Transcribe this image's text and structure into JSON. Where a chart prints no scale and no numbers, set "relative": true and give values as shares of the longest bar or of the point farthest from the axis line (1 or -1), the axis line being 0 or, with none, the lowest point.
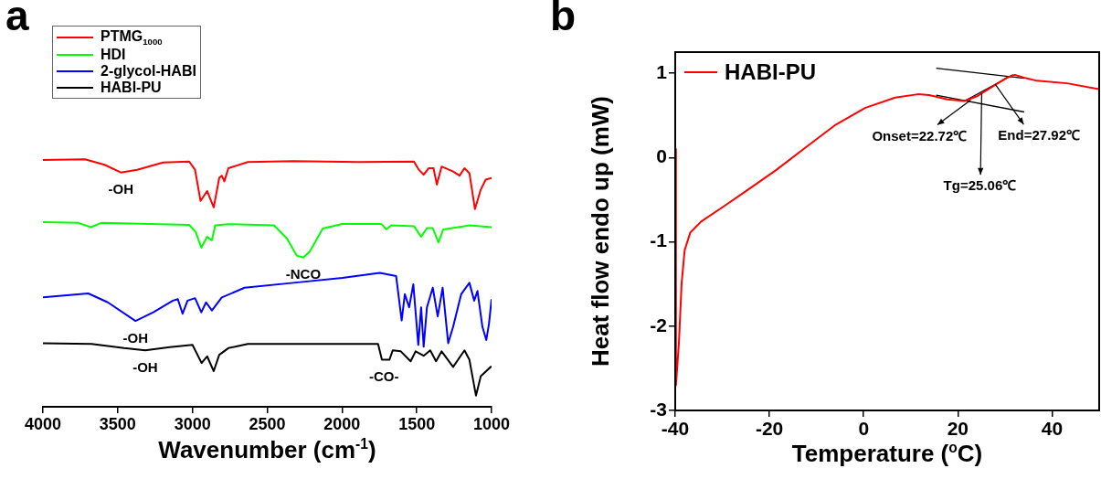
{
  "chart_data": [
    {
      "type": "line",
      "title": "a",
      "xlabel": "Wavenumber (cm$^{-1}$)",
      "relative": true,
      "tick_labels": "x",
      "xlim": [
        4000,
        1000
      ],
      "xticks": [
        4000,
        3500,
        3000,
        2500,
        2000,
        1500,
        1000
      ],
      "legend": "top left",
      "series": [
        {
          "name": "PTMG$_{1000}$",
          "color": "#ff0000",
          "x": [
            4000,
            3719,
            3588,
            3479,
            3370,
            3196,
            3022,
            2983,
            2946,
            2902,
            2858,
            2821,
            2804,
            2787,
            2760,
            2630,
            2325,
            1889,
            1519,
            1486,
            1454,
            1421,
            1388,
            1366,
            1334,
            1257,
            1214,
            1181,
            1148,
            1111,
            1072,
            1039,
            1000
          ],
          "values": [
            0.997,
            1.0,
            0.978,
            0.947,
            0.958,
            0.987,
            0.991,
            0.958,
            0.832,
            0.872,
            0.806,
            0.925,
            0.934,
            0.911,
            0.964,
            0.989,
            0.993,
            0.989,
            0.991,
            0.958,
            0.938,
            0.964,
            0.964,
            0.898,
            0.971,
            0.951,
            0.934,
            0.964,
            0.944,
            0.799,
            0.878,
            0.918,
            0.925
          ]
        },
        {
          "name": "HDI",
          "color": "#00ff00",
          "x": [
            4000,
            3763,
            3680,
            3610,
            3022,
            2978,
            2941,
            2902,
            2870,
            2848,
            2760,
            2455,
            2368,
            2303,
            2259,
            2216,
            2129,
            1998,
            1737,
            1704,
            1671,
            1519,
            1471,
            1432,
            1393,
            1355,
            1323,
            1148,
            1000
          ],
          "values": [
            0.746,
            0.743,
            0.726,
            0.743,
            0.735,
            0.706,
            0.643,
            0.687,
            0.673,
            0.733,
            0.738,
            0.733,
            0.68,
            0.611,
            0.603,
            0.627,
            0.72,
            0.739,
            0.739,
            0.717,
            0.733,
            0.73,
            0.687,
            0.722,
            0.722,
            0.664,
            0.717,
            0.733,
            0.726
          ]
        },
        {
          "name": "2-glycol-HABI",
          "color": "#0000ff",
          "x": [
            4000,
            3697,
            3566,
            3381,
            3262,
            3131,
            3098,
            3066,
            3033,
            2983,
            2941,
            2909,
            2870,
            2804,
            2652,
            2325,
            1998,
            1747,
            1638,
            1601,
            1580,
            1551,
            1523,
            1490,
            1471,
            1454,
            1432,
            1393,
            1360,
            1327,
            1290,
            1257,
            1203,
            1148,
            1116,
            1094,
            1061,
            1035,
            1017,
            1000
          ],
          "values": [
            0.442,
            0.458,
            0.422,
            0.347,
            0.382,
            0.429,
            0.435,
            0.376,
            0.429,
            0.439,
            0.382,
            0.422,
            0.389,
            0.442,
            0.481,
            0.501,
            0.521,
            0.541,
            0.528,
            0.349,
            0.455,
            0.402,
            0.495,
            0.25,
            0.402,
            0.243,
            0.402,
            0.481,
            0.365,
            0.481,
            0.257,
            0.323,
            0.455,
            0.501,
            0.429,
            0.468,
            0.323,
            0.27,
            0.336,
            0.435
          ]
        },
        {
          "name": "HABI-PU",
          "color": "#000000",
          "x": [
            4000,
            3675,
            3457,
            3316,
            3152,
            3000,
            2939,
            2902,
            2858,
            2821,
            2760,
            2630,
            1759,
            1733,
            1683,
            1661,
            1607,
            1541,
            1508,
            1454,
            1410,
            1371,
            1334,
            1257,
            1181,
            1148,
            1104,
            1072,
            1000
          ],
          "values": [
            0.257,
            0.254,
            0.237,
            0.228,
            0.241,
            0.25,
            0.177,
            0.204,
            0.144,
            0.21,
            0.237,
            0.254,
            0.254,
            0.19,
            0.19,
            0.228,
            0.224,
            0.184,
            0.224,
            0.206,
            0.228,
            0.184,
            0.224,
            0.161,
            0.228,
            0.19,
            0.045,
            0.124,
            0.164
          ]
        }
      ],
      "annotations": [
        {
          "text": "-OH",
          "x": 3479,
          "y": 0.947
        },
        {
          "text": "-NCO",
          "x": 2259,
          "y": 0.603
        },
        {
          "text": "-OH",
          "x": 3381,
          "y": 0.347
        },
        {
          "text": "-OH",
          "x": 3316,
          "y": 0.228
        },
        {
          "text": "-CO-",
          "x": 1720,
          "y": 0.19
        }
      ]
    },
    {
      "type": "line",
      "title": "b",
      "xlabel": "Temperature ($^{o}$C)",
      "ylabel": "Heat flow endo up (mW)",
      "xlim": [
        -40,
        50
      ],
      "xticks": [
        -40,
        -20,
        0,
        20,
        40
      ],
      "ylim": [
        -3,
        1.25
      ],
      "yticks": [
        -3,
        -2,
        -1,
        0,
        1
      ],
      "legend": "top left",
      "series": [
        {
          "name": "HABI-PU",
          "color": "#ff0000",
          "x": [
            -40,
            -39.84,
            -39.2,
            -38.65,
            -38.0,
            -36.8,
            -34.5,
            -29.7,
            -25.0,
            -18.6,
            -12.3,
            -5.9,
            0.4,
            6.7,
            11.5,
            13.9,
            17.8,
            21.4,
            24.2,
            27.3,
            30.5,
            32.1,
            34.5,
            36.8,
            43.2,
            49.9
          ],
          "values": [
            0.1,
            -2.7,
            -2.18,
            -1.5,
            -1.1,
            -0.89,
            -0.76,
            -0.58,
            -0.4,
            -0.15,
            0.12,
            0.39,
            0.59,
            0.71,
            0.75,
            0.74,
            0.69,
            0.67,
            0.73,
            0.84,
            0.95,
            0.98,
            0.94,
            0.91,
            0.88,
            0.81
          ]
        },
        {
          "color": "#000000",
          "x": [
            15.4,
            34.1
          ],
          "values": [
            0.74,
            0.54
          ]
        },
        {
          "color": "#000000",
          "x": [
            15.4,
            34.1
          ],
          "values": [
            1.06,
            0.94
          ]
        },
        {
          "color": "#000000",
          "x": [
            21.4,
            31.7
          ],
          "values": [
            0.67,
            0.98
          ]
        }
      ],
      "annotations": [
        {
          "text": "Onset=22.72℃",
          "x": 22.72,
          "y": 0.68
        },
        {
          "text": "End=27.92℃",
          "x": 27.92,
          "y": 0.87
        },
        {
          "text": "Tg=25.06℃",
          "x": 25.06,
          "y": 0.76
        }
      ]
    }
  ]
}
